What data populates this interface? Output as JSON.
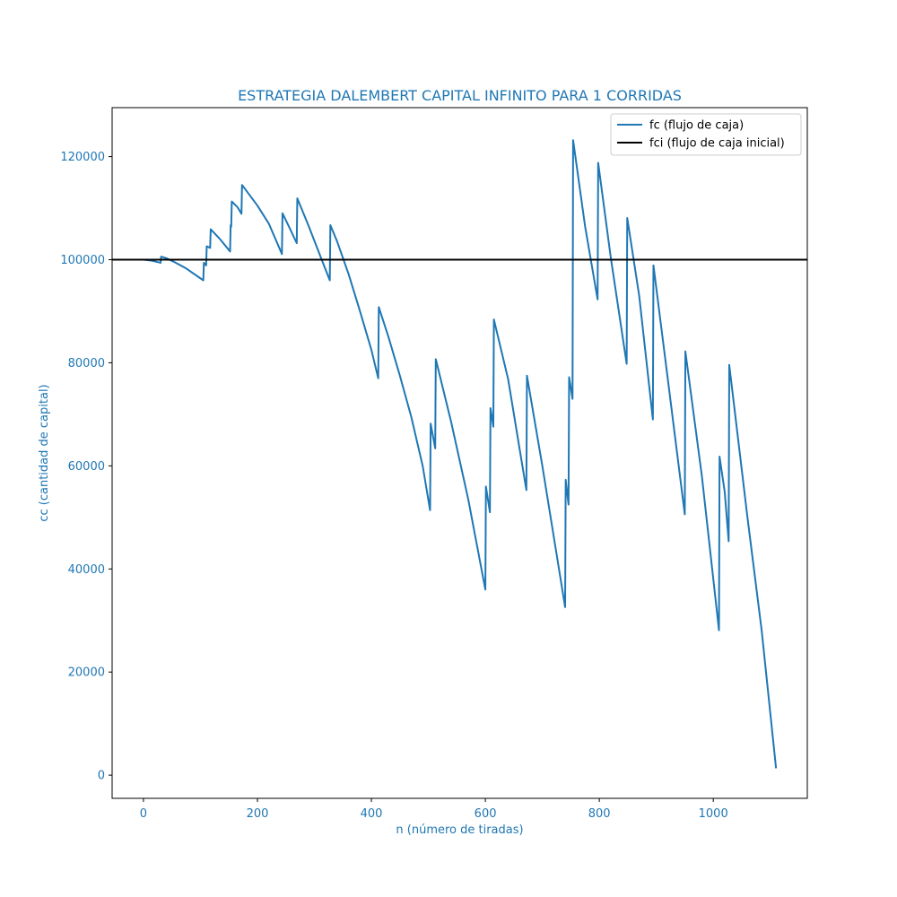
{
  "chart_data": {
    "type": "line",
    "title": "ESTRATEGIA DALEMBERT CAPITAL INFINITO PARA 1 CORRIDAS",
    "xlabel": "n (número de tiradas)",
    "ylabel": "cc (cantidad de capital)",
    "xlim": [
      -55,
      1165
    ],
    "ylim": [
      -4500,
      129500
    ],
    "xticks": [
      0,
      200,
      400,
      600,
      800,
      1000
    ],
    "yticks": [
      0,
      20000,
      40000,
      60000,
      80000,
      100000,
      120000
    ],
    "grid": false,
    "legend_position": "top-right",
    "colors": {
      "accent": "#1f77b4",
      "baseline": "#000000",
      "axis_text": "#1f77b4"
    },
    "series": [
      {
        "name": "fc (flujo de caja)",
        "color": "#1f77b4",
        "points": [
          [
            0,
            100000
          ],
          [
            15,
            99800
          ],
          [
            30,
            99400
          ],
          [
            31,
            100600
          ],
          [
            40,
            100300
          ],
          [
            55,
            99500
          ],
          [
            75,
            98300
          ],
          [
            105,
            96000
          ],
          [
            106,
            99400
          ],
          [
            110,
            98900
          ],
          [
            111,
            102600
          ],
          [
            117,
            102300
          ],
          [
            118,
            105900
          ],
          [
            135,
            103900
          ],
          [
            152,
            101600
          ],
          [
            153,
            106700
          ],
          [
            154,
            106400
          ],
          [
            155,
            111300
          ],
          [
            165,
            110200
          ],
          [
            172,
            108900
          ],
          [
            173,
            114500
          ],
          [
            200,
            110500
          ],
          [
            220,
            107000
          ],
          [
            243,
            101100
          ],
          [
            244,
            109000
          ],
          [
            255,
            106500
          ],
          [
            269,
            103200
          ],
          [
            270,
            111900
          ],
          [
            290,
            106500
          ],
          [
            310,
            100800
          ],
          [
            327,
            96000
          ],
          [
            328,
            106700
          ],
          [
            340,
            103500
          ],
          [
            360,
            97200
          ],
          [
            380,
            90000
          ],
          [
            400,
            82500
          ],
          [
            412,
            77000
          ],
          [
            413,
            90800
          ],
          [
            430,
            85000
          ],
          [
            450,
            77500
          ],
          [
            470,
            69500
          ],
          [
            490,
            60000
          ],
          [
            503,
            51400
          ],
          [
            504,
            68200
          ],
          [
            512,
            63400
          ],
          [
            513,
            80700
          ],
          [
            540,
            68500
          ],
          [
            570,
            53500
          ],
          [
            600,
            36000
          ],
          [
            601,
            56000
          ],
          [
            608,
            51000
          ],
          [
            609,
            71200
          ],
          [
            614,
            67600
          ],
          [
            615,
            88400
          ],
          [
            640,
            76800
          ],
          [
            672,
            55300
          ],
          [
            673,
            77500
          ],
          [
            700,
            60000
          ],
          [
            740,
            32600
          ],
          [
            741,
            57300
          ],
          [
            746,
            52500
          ],
          [
            747,
            77200
          ],
          [
            753,
            73000
          ],
          [
            754,
            123200
          ],
          [
            775,
            106500
          ],
          [
            797,
            92300
          ],
          [
            798,
            118800
          ],
          [
            820,
            100500
          ],
          [
            848,
            79800
          ],
          [
            849,
            108100
          ],
          [
            870,
            93000
          ],
          [
            894,
            69000
          ],
          [
            895,
            98900
          ],
          [
            920,
            77000
          ],
          [
            950,
            50600
          ],
          [
            951,
            82200
          ],
          [
            980,
            58000
          ],
          [
            1010,
            28100
          ],
          [
            1011,
            61800
          ],
          [
            1020,
            55000
          ],
          [
            1027,
            45400
          ],
          [
            1028,
            79600
          ],
          [
            1060,
            50000
          ],
          [
            1085,
            28000
          ],
          [
            1110,
            1500
          ]
        ]
      },
      {
        "name": "fci (flujo de caja inicial)",
        "color": "#000000",
        "y": 100000
      }
    ]
  }
}
